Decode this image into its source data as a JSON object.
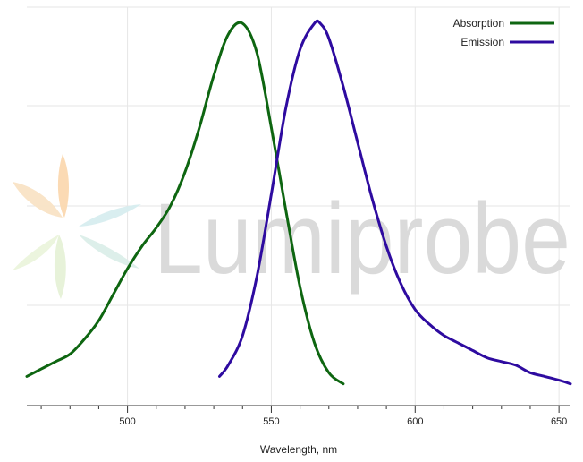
{
  "chart_data": {
    "type": "line",
    "title": "",
    "xlabel": "Wavelength, nm",
    "ylabel": "",
    "xlim": [
      465,
      654
    ],
    "ylim": [
      0,
      1.0
    ],
    "x_ticks": [
      500,
      550,
      600,
      650
    ],
    "x_tick_labels": [
      "500",
      "550",
      "600",
      "650"
    ],
    "grid": true,
    "legend_position": "top-right",
    "series": [
      {
        "name": "Absorption",
        "color": "#0e6611",
        "x": [
          465,
          470,
          475,
          480,
          485,
          490,
          495,
          500,
          505,
          510,
          515,
          520,
          525,
          530,
          535,
          540,
          545,
          550,
          555,
          560,
          565,
          570,
          575
        ],
        "y": [
          0.04,
          0.06,
          0.08,
          0.1,
          0.14,
          0.19,
          0.26,
          0.33,
          0.39,
          0.44,
          0.5,
          0.59,
          0.71,
          0.85,
          0.96,
          0.99,
          0.91,
          0.71,
          0.49,
          0.28,
          0.13,
          0.05,
          0.02
        ]
      },
      {
        "name": "Emission",
        "color": "#2e0ba0",
        "x": [
          532,
          535,
          540,
          545,
          550,
          555,
          560,
          565,
          567,
          570,
          575,
          580,
          585,
          590,
          595,
          600,
          605,
          610,
          615,
          620,
          625,
          630,
          635,
          640,
          645,
          650,
          654
        ],
        "y": [
          0.04,
          0.07,
          0.15,
          0.31,
          0.53,
          0.76,
          0.92,
          0.99,
          0.99,
          0.95,
          0.82,
          0.67,
          0.52,
          0.39,
          0.29,
          0.22,
          0.18,
          0.15,
          0.13,
          0.11,
          0.09,
          0.08,
          0.07,
          0.05,
          0.04,
          0.03,
          0.02
        ]
      }
    ]
  },
  "watermark": {
    "text": "Lumiprobe",
    "text_color": "#d9d9d9",
    "logo_colors": [
      "#fbd9b0",
      "#f5c79a",
      "#dcefe3",
      "#d8eef0",
      "#e9f3d6"
    ]
  }
}
